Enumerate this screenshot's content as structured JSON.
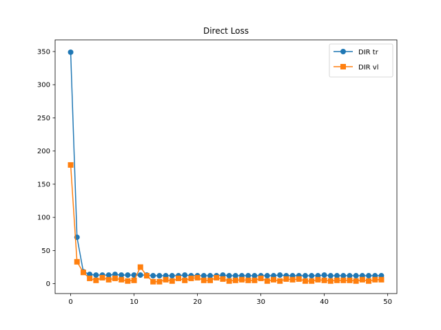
{
  "chart_data": {
    "type": "line",
    "title": "Direct Loss",
    "xlabel": "",
    "ylabel": "",
    "x": [
      0,
      1,
      2,
      3,
      4,
      5,
      6,
      7,
      8,
      9,
      10,
      11,
      12,
      13,
      14,
      15,
      16,
      17,
      18,
      19,
      20,
      21,
      22,
      23,
      24,
      25,
      26,
      27,
      28,
      29,
      30,
      31,
      32,
      33,
      34,
      35,
      36,
      37,
      38,
      39,
      40,
      41,
      42,
      43,
      44,
      45,
      46,
      47,
      48,
      49
    ],
    "xlim": [
      -2.45,
      51.45
    ],
    "ylim": [
      -14.9,
      367.6
    ],
    "xticks": [
      0,
      10,
      20,
      30,
      40,
      50
    ],
    "yticks": [
      0,
      50,
      100,
      150,
      200,
      250,
      300,
      350
    ],
    "grid": false,
    "legend_position": "top-right",
    "series": [
      {
        "name": "DIR tr",
        "color": "#1f77b4",
        "marker": "circle",
        "values": [
          349,
          70,
          18,
          14,
          13,
          13,
          13,
          14,
          13,
          13,
          13,
          13,
          13,
          12,
          12,
          12,
          12,
          12,
          13,
          12,
          12,
          12,
          12,
          12,
          13,
          12,
          12,
          12,
          12,
          12,
          12,
          12,
          12,
          13,
          12,
          12,
          12,
          12,
          12,
          12,
          13,
          12,
          12,
          12,
          12,
          12,
          12,
          12,
          12,
          12
        ]
      },
      {
        "name": "DIR vl",
        "color": "#ff7f0e",
        "marker": "square",
        "values": [
          179,
          33,
          17,
          8,
          5,
          9,
          6,
          8,
          6,
          4,
          5,
          25,
          12,
          3,
          3,
          6,
          4,
          8,
          5,
          8,
          9,
          5,
          5,
          9,
          7,
          4,
          5,
          6,
          5,
          5,
          8,
          4,
          6,
          4,
          7,
          6,
          7,
          4,
          4,
          6,
          5,
          4,
          5,
          5,
          5,
          4,
          6,
          4,
          6,
          6
        ]
      }
    ]
  }
}
